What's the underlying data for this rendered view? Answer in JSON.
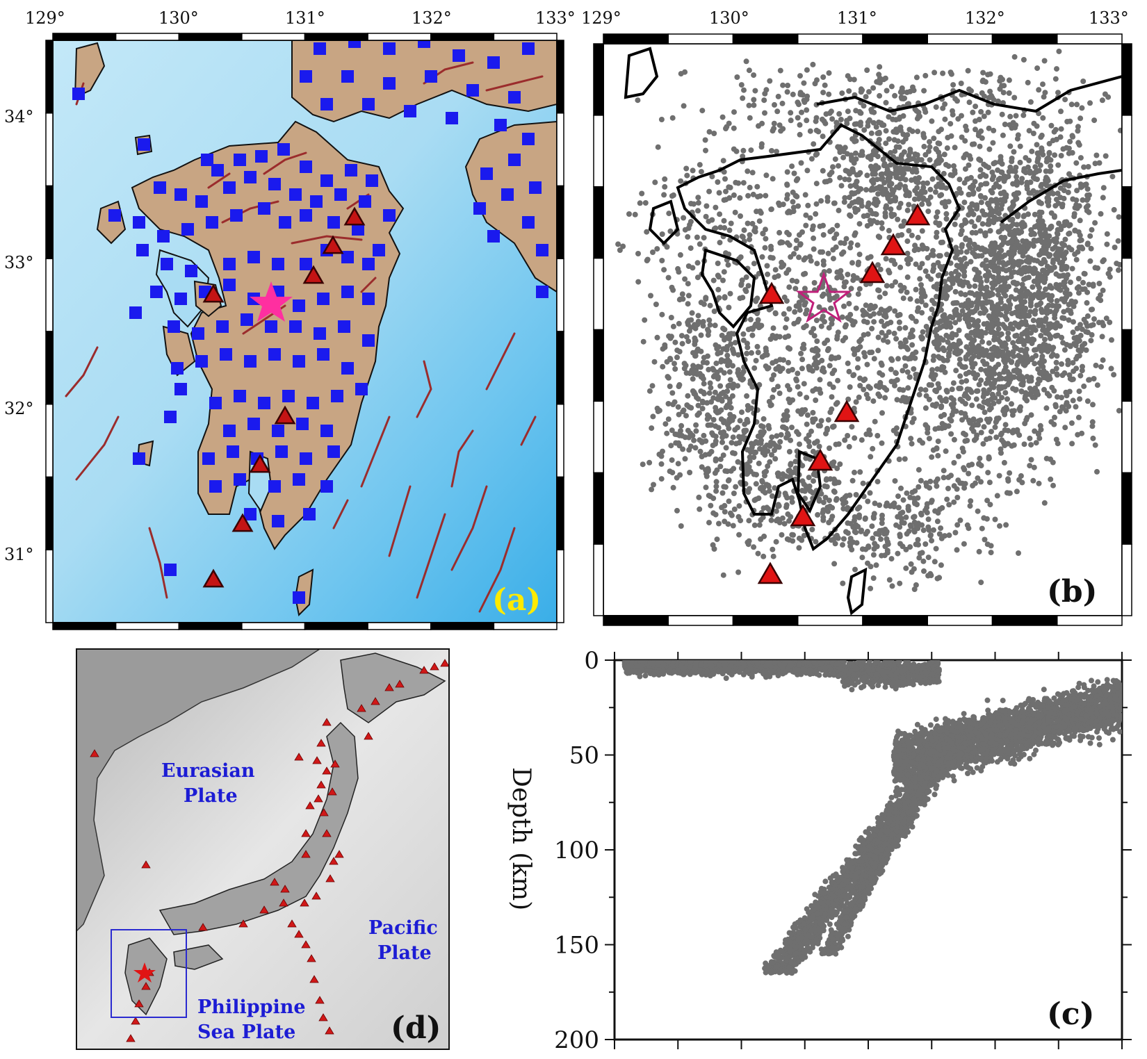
{
  "figure": {
    "panels": {
      "a": {
        "letter": "(a)",
        "lon_ticks": [
          "129°",
          "130°",
          "131°",
          "132°",
          "133°"
        ],
        "lat_ticks": [
          "34°",
          "33°",
          "32°",
          "31°"
        ],
        "lon_range": [
          129,
          133
        ],
        "lat_range": [
          30.5,
          34.5
        ],
        "colors": {
          "land": "#c8a583",
          "sea": "#a9dcf3",
          "deep_sea": "#4ab4ec",
          "station": "#1a1aee",
          "fault": "#9b2c2c",
          "volcano": "#c41414",
          "epicenter": "#ff2fa0",
          "letter": "#ffea00"
        },
        "legend": "none",
        "grid": false
      },
      "b": {
        "letter": "(b)",
        "lon_ticks": [
          "129°",
          "130°",
          "131°",
          "132°",
          "133°"
        ],
        "colors": {
          "event": "#6f6f6f",
          "coastline": "#000000",
          "volcano": "#e01414",
          "epicenter_outline": "#c0207a"
        },
        "grid": false
      },
      "c": {
        "letter": "(c)",
        "ylabel": "Depth (km)",
        "y_ticks": [
          "0",
          "50",
          "100",
          "150",
          "200"
        ],
        "ylim": [
          0,
          200
        ],
        "colors": {
          "event": "#6f6f6f"
        }
      },
      "d": {
        "letter": "(d)",
        "plates": {
          "eurasian": [
            "Eurasian",
            "Plate"
          ],
          "pacific": [
            "Pacific",
            "Plate"
          ],
          "philippine": [
            "Philippine",
            "Sea Plate"
          ]
        },
        "colors": {
          "land": "#9b9b9b",
          "sea": "#dcdcdc",
          "label": "#1c1cd4",
          "volcano": "#d01818",
          "box": "#2a2ad0"
        }
      }
    }
  },
  "chart_data": [
    {
      "type": "scatter",
      "panel": "c",
      "ylabel": "Depth (km)",
      "ylim": [
        0,
        200
      ],
      "y_tick_labels": [
        "0",
        "50",
        "100",
        "150",
        "200"
      ],
      "note_bands": [
        {
          "depth_range": [
            0,
            25
          ],
          "x_extent": [
            0.02,
            0.62
          ]
        },
        {
          "depth_range": [
            10,
            60
          ],
          "x_extent": [
            0.55,
            1.0
          ]
        },
        {
          "depth_range": [
            40,
            170
          ],
          "x_extent": [
            0.28,
            0.65
          ]
        }
      ]
    }
  ]
}
